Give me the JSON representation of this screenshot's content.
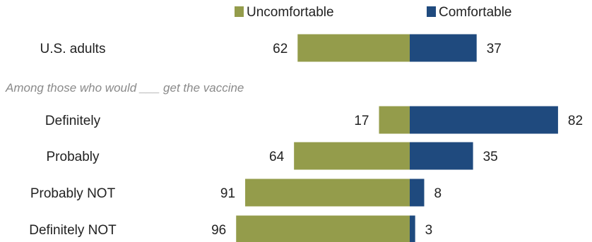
{
  "chart_data": {
    "type": "bar",
    "orientation": "horizontal-diverging",
    "subtitle": "Among those who would ___ get the vaccine",
    "categories": [
      "U.S. adults",
      "Definitely",
      "Probably",
      "Probably NOT",
      "Definitely NOT"
    ],
    "series": [
      {
        "name": "Uncomfortable",
        "color": "#949c4b",
        "values": [
          62,
          17,
          64,
          91,
          96
        ]
      },
      {
        "name": "Comfortable",
        "color": "#1f4a7e",
        "values": [
          37,
          82,
          35,
          8,
          3
        ]
      }
    ],
    "legend_position": "top",
    "grid": false,
    "xlim": [
      0,
      100
    ]
  }
}
